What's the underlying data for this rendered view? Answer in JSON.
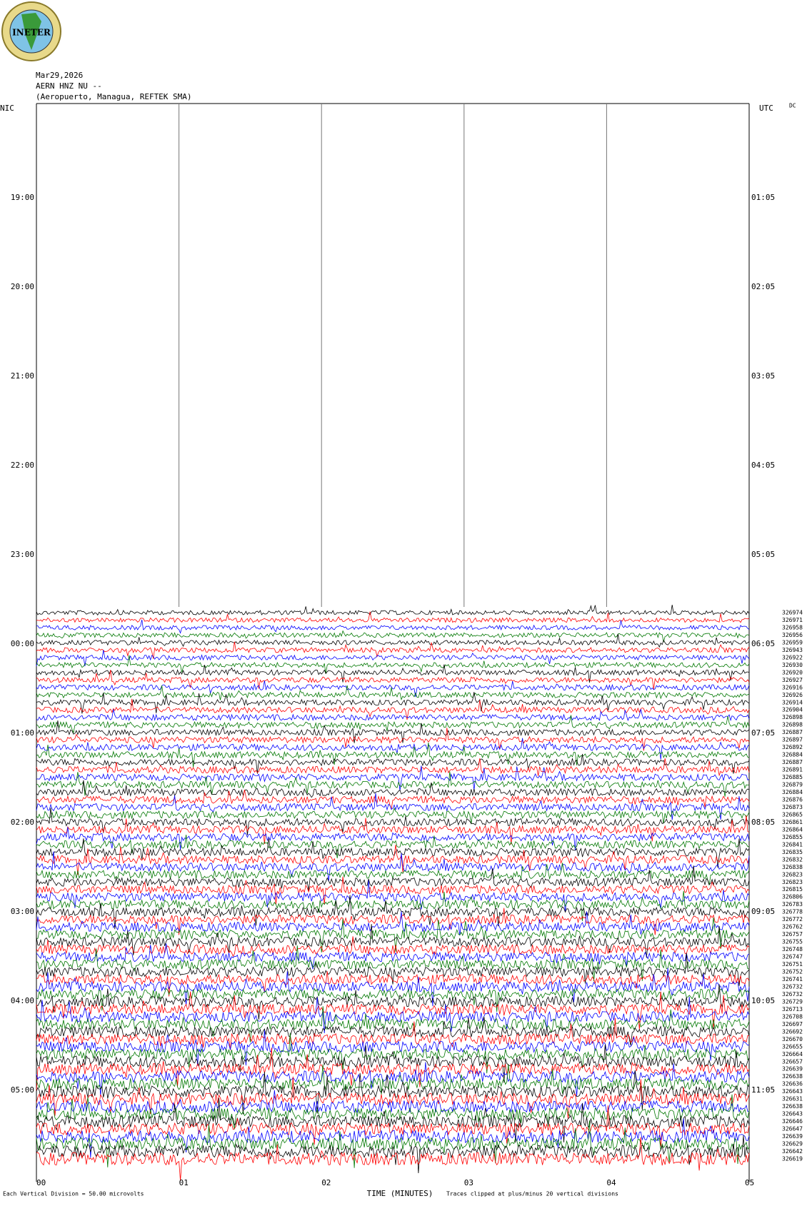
{
  "header": {
    "logo": "INETER",
    "date": "Mar29,2026",
    "station": "AERN HNZ NU --",
    "location": "(Aeropuerto, Managua, REFTEK SMA)"
  },
  "axes": {
    "left_label": "NIC",
    "right_label": "UTC",
    "dc": "DC",
    "left_times": [
      "19:00",
      "20:00",
      "21:00",
      "22:00",
      "23:00",
      "00:00",
      "01:00",
      "02:00",
      "03:00",
      "04:00",
      "05:00"
    ],
    "right_times": [
      "01:05",
      "02:05",
      "03:05",
      "04:05",
      "05:05",
      "06:05",
      "07:05",
      "08:05",
      "09:05",
      "10:05",
      "11:05"
    ],
    "minutes": [
      "00",
      "01",
      "02",
      "03",
      "04",
      "05"
    ],
    "x_title": "TIME (MINUTES)"
  },
  "footer": {
    "scale_note": "Each Vertical Division =   50.00 microvolts",
    "clip_note": "Traces clipped at plus/minus 20 vertical divisions"
  },
  "trace_counts": [
    326974,
    326971,
    326958,
    326956,
    326959,
    326943,
    326922,
    326930,
    326920,
    326927,
    326916,
    326926,
    326914,
    326904,
    326898,
    326898,
    326887,
    326897,
    326892,
    326884,
    326887,
    326891,
    326885,
    326879,
    326884,
    326876,
    326873,
    326865,
    326861,
    326864,
    326855,
    326841,
    326835,
    326832,
    326838,
    326823,
    326823,
    326815,
    326806,
    326783,
    326778,
    326772,
    326762,
    326757,
    326755,
    326748,
    326747,
    326751,
    326752,
    326741,
    326732,
    326732,
    326729,
    326713,
    326708,
    326697,
    326692,
    326670,
    326655,
    326664,
    326657,
    326639,
    326638,
    326636,
    326643,
    326631,
    326638,
    326643,
    326646,
    326647,
    326639,
    326629,
    326642,
    326619
  ]
}
